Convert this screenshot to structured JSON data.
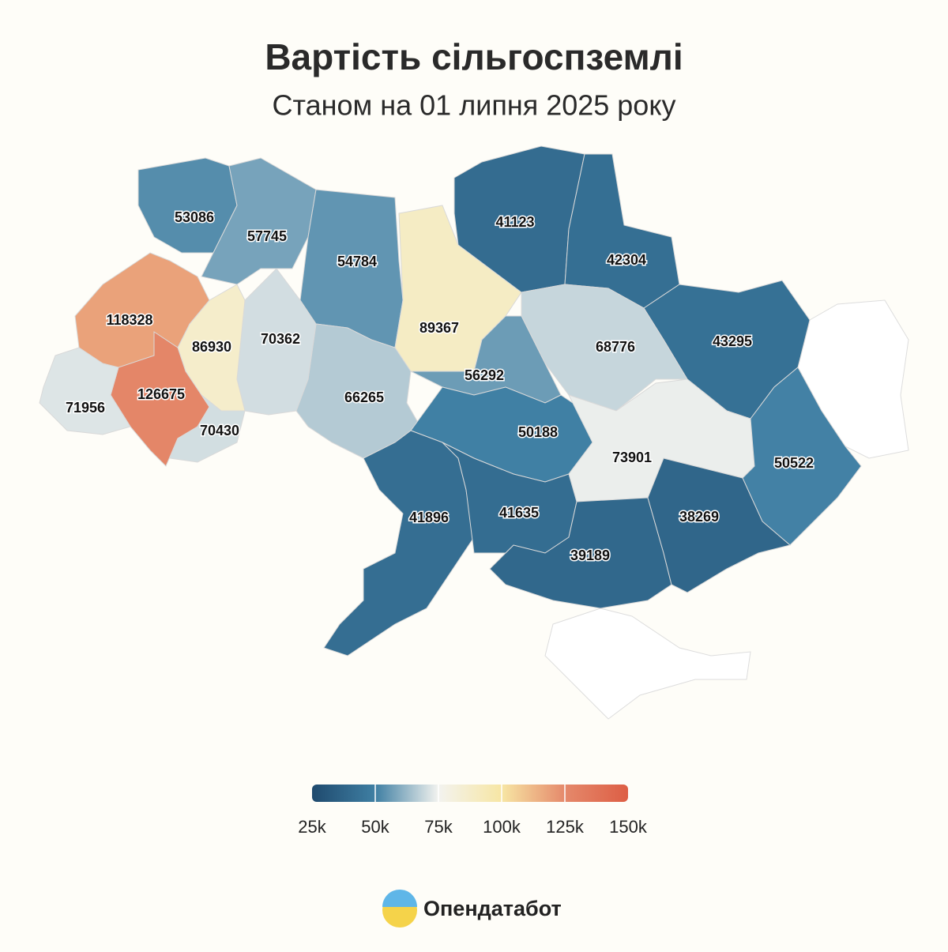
{
  "chart_data": {
    "type": "choropleth",
    "title": "Вартість сільгоспземлі",
    "subtitle": "Станом на 01 липня 2025 року",
    "values": [
      53086,
      57745,
      54784,
      89367,
      41123,
      42304,
      43295,
      68776,
      56292,
      66265,
      70362,
      86930,
      118328,
      126675,
      71956,
      70430,
      50188,
      73901,
      50522,
      41896,
      41635,
      39189,
      38269
    ],
    "legend_ticks": [
      {
        "value": 25000,
        "label": "25k"
      },
      {
        "value": 50000,
        "label": "50k"
      },
      {
        "value": 75000,
        "label": "75k"
      },
      {
        "value": 100000,
        "label": "100k"
      },
      {
        "value": 125000,
        "label": "125k"
      },
      {
        "value": 150000,
        "label": "150k"
      }
    ],
    "legend_colors": [
      "#1f4a6e",
      "#3f7fa3",
      "#f3f3ef",
      "#f7e6a4",
      "#e5896b",
      "#dd5e45"
    ],
    "source": "Опендатабот"
  }
}
